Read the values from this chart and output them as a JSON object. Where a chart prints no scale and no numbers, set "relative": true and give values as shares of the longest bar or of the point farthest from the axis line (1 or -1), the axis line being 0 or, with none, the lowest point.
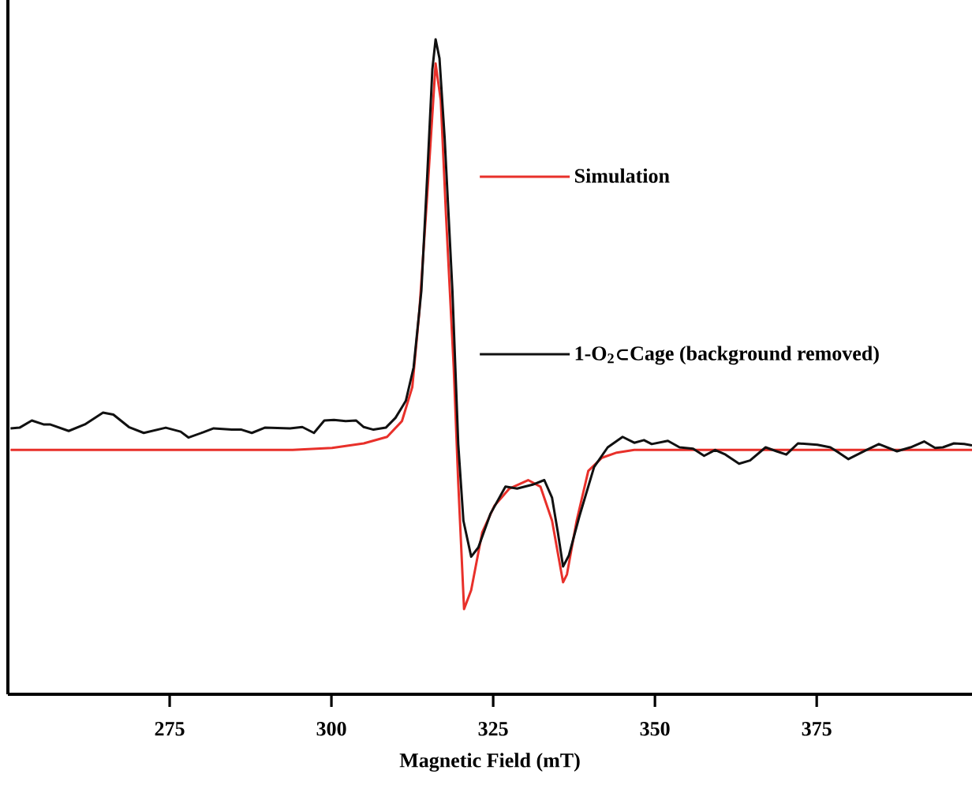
{
  "chart_data": {
    "type": "line",
    "relative": true,
    "xlabel": "Magnetic Field (mT)",
    "xlim": [
      250,
      399
    ],
    "xticks": [
      275,
      300,
      325,
      350,
      375
    ],
    "legend": "top right",
    "grid": false,
    "marker": "none",
    "line_style": "solid",
    "series": [
      {
        "name": "Simulation",
        "color": "#e8302a",
        "x": [
          250.4,
          294.0,
          300.1,
          305.0,
          308.6,
          310.9,
          312.5,
          313.6,
          314.8,
          316.1,
          316.9,
          317.7,
          318.9,
          319.6,
          320.5,
          321.6,
          323.3,
          325.2,
          327.5,
          330.4,
          332.3,
          334.1,
          335.8,
          336.4,
          337.9,
          339.7,
          341.8,
          344.1,
          346.8,
          355.1,
          399.0
        ],
        "values": [
          0.373,
          0.373,
          0.376,
          0.383,
          0.393,
          0.417,
          0.469,
          0.586,
          0.761,
          0.963,
          0.907,
          0.733,
          0.499,
          0.323,
          0.13,
          0.159,
          0.247,
          0.288,
          0.314,
          0.327,
          0.317,
          0.265,
          0.171,
          0.183,
          0.265,
          0.341,
          0.361,
          0.369,
          0.373,
          0.373,
          0.373
        ]
      },
      {
        "name": "1-O$_{2}$⊂Cage (background removed)",
        "color": "#111111",
        "x": [
          250.4,
          251.8,
          253.7,
          255.5,
          256.5,
          259.4,
          261.9,
          264.7,
          266.3,
          268.7,
          271.0,
          274.4,
          276.7,
          277.9,
          280.2,
          281.8,
          284.6,
          286.1,
          287.7,
          289.7,
          293.6,
          295.5,
          297.3,
          298.9,
          300.4,
          302.2,
          303.8,
          305.0,
          306.5,
          308.4,
          309.9,
          311.5,
          312.7,
          313.9,
          314.8,
          315.6,
          316.1,
          316.7,
          317.5,
          318.7,
          319.6,
          320.4,
          321.6,
          322.7,
          324.6,
          326.9,
          328.7,
          331.1,
          332.9,
          334.1,
          335.0,
          335.8,
          336.7,
          338.3,
          340.6,
          342.7,
          345.0,
          346.8,
          348.3,
          349.5,
          352.0,
          353.8,
          355.9,
          357.6,
          359.3,
          360.9,
          363.0,
          364.7,
          367.1,
          368.8,
          370.3,
          372.1,
          375.1,
          377.1,
          378.4,
          379.9,
          382.5,
          384.6,
          387.4,
          389.5,
          391.6,
          393.3,
          394.5,
          396.2,
          397.8,
          399.0
        ],
        "values": [
          0.406,
          0.407,
          0.418,
          0.412,
          0.412,
          0.402,
          0.412,
          0.43,
          0.427,
          0.408,
          0.399,
          0.407,
          0.401,
          0.392,
          0.4,
          0.406,
          0.404,
          0.404,
          0.399,
          0.407,
          0.406,
          0.408,
          0.399,
          0.418,
          0.419,
          0.417,
          0.418,
          0.408,
          0.404,
          0.407,
          0.422,
          0.448,
          0.499,
          0.616,
          0.79,
          0.954,
          1.0,
          0.971,
          0.849,
          0.616,
          0.382,
          0.265,
          0.21,
          0.224,
          0.276,
          0.317,
          0.314,
          0.32,
          0.327,
          0.3,
          0.247,
          0.195,
          0.212,
          0.271,
          0.347,
          0.377,
          0.393,
          0.384,
          0.388,
          0.382,
          0.387,
          0.377,
          0.375,
          0.364,
          0.373,
          0.366,
          0.352,
          0.357,
          0.377,
          0.371,
          0.366,
          0.383,
          0.381,
          0.377,
          0.369,
          0.359,
          0.372,
          0.382,
          0.371,
          0.377,
          0.386,
          0.376,
          0.377,
          0.383,
          0.382,
          0.38
        ]
      }
    ]
  }
}
